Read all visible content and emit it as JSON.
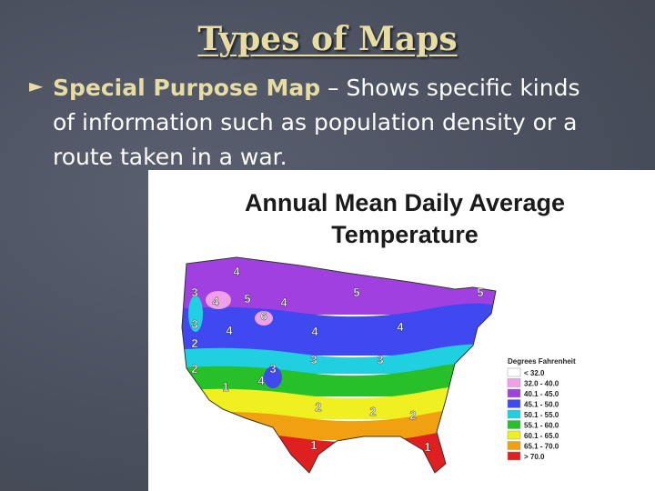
{
  "title": "Types of Maps",
  "bullet": {
    "marker": "►",
    "term": "Special Purpose Map",
    "text": "– Shows specific kinds of information such as population density or a route taken in a war."
  },
  "map": {
    "title": [
      "Annual Mean Daily Average",
      "Temperature"
    ],
    "legend_title": "Degrees Fahrenheit",
    "legend": [
      {
        "label": "< 32.0",
        "color": "#ffffff"
      },
      {
        "label": "32.0 - 40.0",
        "color": "#f0a0e8"
      },
      {
        "label": "40.1 - 45.0",
        "color": "#a040e0"
      },
      {
        "label": "45.1 - 50.0",
        "color": "#4048f0"
      },
      {
        "label": "50.1 - 55.0",
        "color": "#20d0e0"
      },
      {
        "label": "55.1 - 60.0",
        "color": "#28c028"
      },
      {
        "label": "60.1 - 65.0",
        "color": "#f0f020"
      },
      {
        "label": "65.1 - 70.0",
        "color": "#f0a010"
      },
      {
        "label": "> 70.0",
        "color": "#e02020"
      }
    ],
    "zones": [
      "4",
      "4",
      "5",
      "4",
      "6",
      "4",
      "4",
      "5",
      "4",
      "5",
      "3",
      "3",
      "2",
      "2",
      "3",
      "3",
      "3",
      "4",
      "1",
      "2",
      "2",
      "2",
      "1",
      "1"
    ]
  }
}
